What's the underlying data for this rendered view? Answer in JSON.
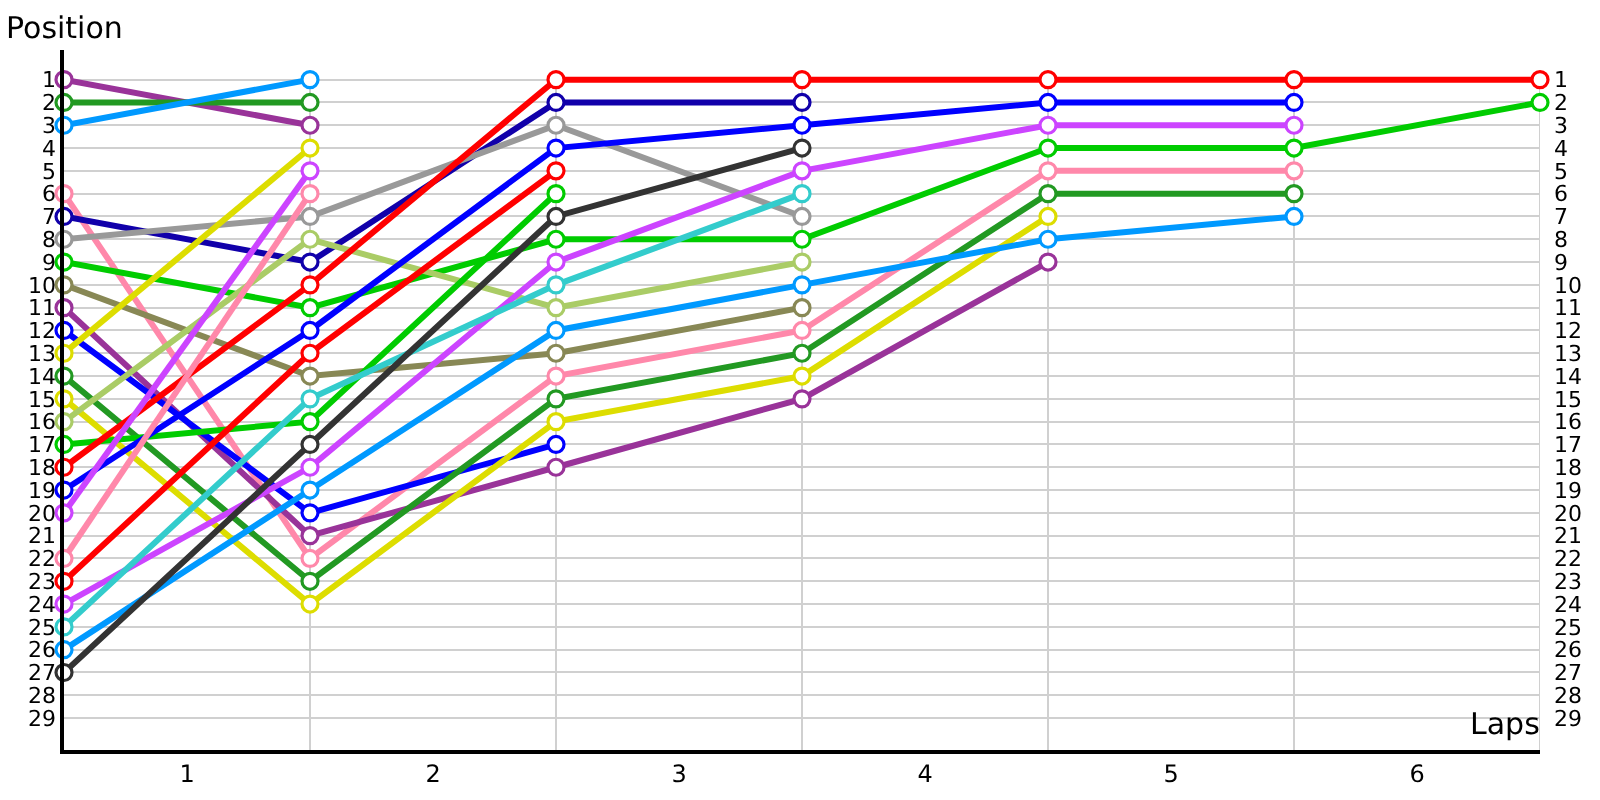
{
  "chart_data": {
    "type": "line",
    "xlabel": "Laps",
    "ylabel": "Position",
    "x": [
      0,
      1,
      2,
      3,
      4,
      5,
      6
    ],
    "xlim": [
      0,
      6
    ],
    "xticks": [
      {
        "value": 0.5,
        "label": "1"
      },
      {
        "value": 1.5,
        "label": "2"
      },
      {
        "value": 2.5,
        "label": "3"
      },
      {
        "value": 3.5,
        "label": "4"
      },
      {
        "value": 4.5,
        "label": "5"
      },
      {
        "value": 5.5,
        "label": "6"
      },
      {
        "value": 1,
        "label": null
      },
      {
        "value": 2,
        "label": null
      },
      {
        "value": 3,
        "label": null
      },
      {
        "value": 4,
        "label": null
      },
      {
        "value": 5,
        "label": null
      },
      {
        "value": 6,
        "label": null
      }
    ],
    "ylim": [
      30.4,
      -0.3
    ],
    "yticks": [
      1,
      2,
      3,
      4,
      5,
      6,
      7,
      8,
      9,
      10,
      11,
      12,
      13,
      14,
      15,
      16,
      17,
      18,
      19,
      20,
      21,
      22,
      23,
      24,
      25,
      26,
      27,
      28,
      29
    ],
    "y2lim": [
      30.4,
      -0.3
    ],
    "y2ticks": [
      1,
      2,
      3,
      4,
      5,
      6,
      7,
      8,
      9,
      10,
      11,
      12,
      13,
      14,
      15,
      16,
      17,
      18,
      19,
      20,
      21,
      22,
      23,
      24,
      25,
      26,
      27,
      28,
      29
    ],
    "grid": true,
    "marker": "circle",
    "line_style": "solid",
    "series": [
      {
        "color": "#993399",
        "values": [
          1,
          3,
          null,
          null,
          null,
          null,
          null
        ]
      },
      {
        "color": "#229922",
        "values": [
          2,
          2,
          null,
          null,
          null,
          null,
          null
        ]
      },
      {
        "color": "#0099ff",
        "values": [
          3,
          1,
          null,
          null,
          null,
          null,
          null
        ]
      },
      {
        "color": "#ff88aa",
        "values": [
          6,
          22,
          14,
          12,
          5,
          5,
          null
        ]
      },
      {
        "color": "#1100aa",
        "values": [
          7,
          9,
          2,
          2,
          null,
          null,
          null
        ]
      },
      {
        "color": "#999999",
        "values": [
          8,
          7,
          3,
          7,
          null,
          null,
          null
        ]
      },
      {
        "color": "#00cc00",
        "values": [
          9,
          11,
          8,
          8,
          4,
          4,
          2
        ]
      },
      {
        "color": "#888855",
        "values": [
          10,
          14,
          13,
          11,
          null,
          null,
          null
        ]
      },
      {
        "color": "#993399",
        "values": [
          11,
          21,
          18,
          15,
          9,
          null,
          null
        ]
      },
      {
        "color": "#0000ff",
        "values": [
          12,
          20,
          17,
          null,
          null,
          null,
          null
        ]
      },
      {
        "color": "#dddd00",
        "values": [
          13,
          4,
          null,
          null,
          null,
          null,
          null
        ]
      },
      {
        "color": "#229922",
        "values": [
          14,
          23,
          15,
          13,
          6,
          6,
          null
        ]
      },
      {
        "color": "#dddd00",
        "values": [
          15,
          24,
          16,
          14,
          7,
          null,
          null
        ]
      },
      {
        "color": "#aacc66",
        "values": [
          16,
          8,
          11,
          9,
          null,
          null,
          null
        ]
      },
      {
        "color": "#00cc00",
        "values": [
          17,
          16,
          6,
          null,
          null,
          null,
          null
        ]
      },
      {
        "color": "#ff0000",
        "values": [
          18,
          10,
          1,
          1,
          1,
          1,
          1
        ]
      },
      {
        "color": "#0000ff",
        "values": [
          19,
          12,
          4,
          3,
          2,
          2,
          null
        ]
      },
      {
        "color": "#cc44ff",
        "values": [
          20,
          5,
          null,
          null,
          null,
          null,
          null
        ]
      },
      {
        "color": "#ff88aa",
        "values": [
          22,
          6,
          null,
          null,
          null,
          null,
          null
        ]
      },
      {
        "color": "#ff0000",
        "values": [
          23,
          13,
          5,
          null,
          null,
          null,
          null
        ]
      },
      {
        "color": "#cc44ff",
        "values": [
          24,
          18,
          9,
          5,
          3,
          3,
          null
        ]
      },
      {
        "color": "#33cccc",
        "values": [
          25,
          15,
          10,
          6,
          null,
          null,
          null
        ]
      },
      {
        "color": "#0099ff",
        "values": [
          26,
          19,
          12,
          10,
          8,
          7,
          null
        ]
      },
      {
        "color": "#333333",
        "values": [
          27,
          17,
          7,
          4,
          null,
          null,
          null
        ]
      }
    ]
  }
}
